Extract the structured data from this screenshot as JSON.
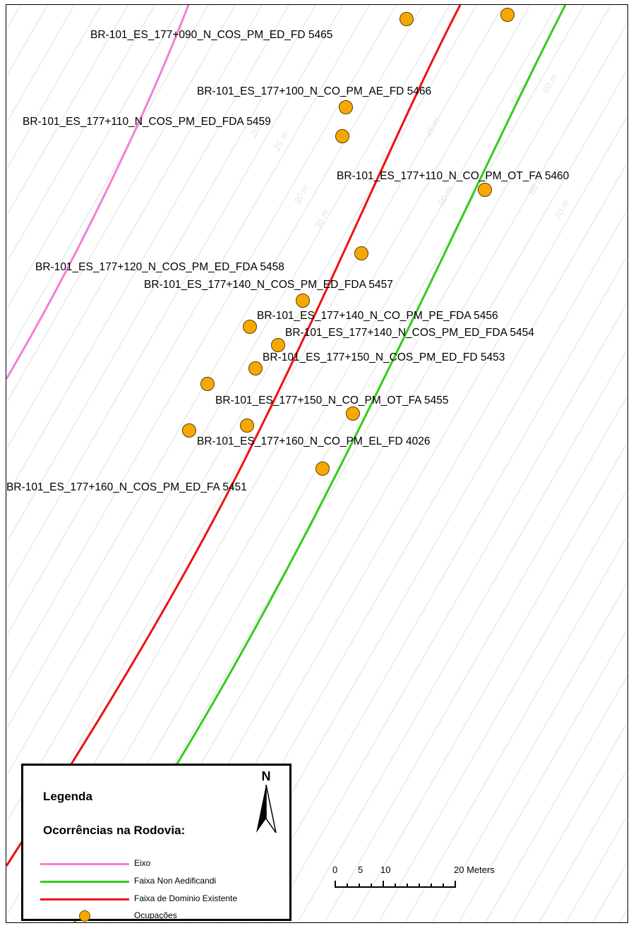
{
  "map": {
    "occurrences": [
      {
        "label": "BR-101_ES_177+090_N_COS_PM_ED_FD 5465"
      },
      {
        "label": "BR-101_ES_177+100_N_CO_PM_AE_FD 5466"
      },
      {
        "label": "BR-101_ES_177+110_N_COS_PM_ED_FDA 5459"
      },
      {
        "label": "BR-101_ES_177+110_N_CO_PM_OT_FA 5460"
      },
      {
        "label": "BR-101_ES_177+120_N_COS_PM_ED_FDA 5458"
      },
      {
        "label": "BR-101_ES_177+140_N_COS_PM_ED_FDA 5457"
      },
      {
        "label": "BR-101_ES_177+140_N_CO_PM_PE_FDA 5456"
      },
      {
        "label": "BR-101_ES_177+140_N_COS_PM_ED_FDA 5454"
      },
      {
        "label": "BR-101_ES_177+150_N_COS_PM_ED_FD 5453"
      },
      {
        "label": "BR-101_ES_177+150_N_CO_PM_OT_FA 5455"
      },
      {
        "label": "BR-101_ES_177+160_N_CO_PM_EL_FD 4026"
      },
      {
        "label": "BR-101_ES_177+160_N_COS_PM_ED_FA 5451"
      }
    ],
    "distance_labels": [
      "20 m",
      "25 m",
      "30 m",
      "35 m",
      "40 m",
      "45 m",
      "50 m",
      "55 m",
      "60 m",
      "65 m",
      "70 m"
    ],
    "colors": {
      "eixo": "#f47fd6",
      "faixa_non_aedificandi": "#33cc1a",
      "faixa_dominio": "#ee1111",
      "ocupacoes": "#f7a800",
      "distance_lines": "#e0e0e0"
    }
  },
  "legend": {
    "title": "Legenda",
    "subtitle": "Ocorrências na Rodovia:",
    "items": [
      {
        "label": "Eixo"
      },
      {
        "label": "Faixa Non Aedificandi"
      },
      {
        "label": "Faixa de Dominio Existente"
      },
      {
        "label": "Ocupações"
      }
    ],
    "north": "N"
  },
  "scale_bar": {
    "ticks": [
      "0",
      "5",
      "10",
      "20 Meters"
    ]
  }
}
